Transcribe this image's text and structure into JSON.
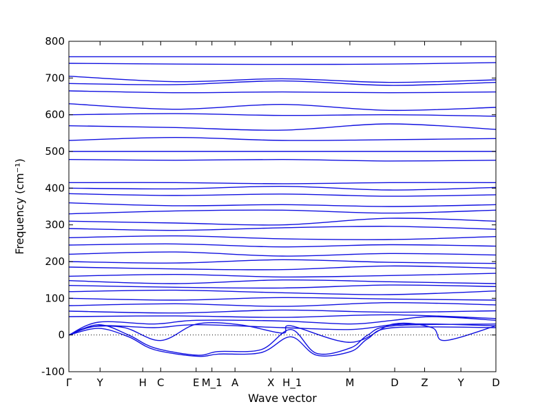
{
  "chart_data": {
    "type": "line",
    "xlabel": "Wave vector",
    "ylabel": "Frequency (cm⁻¹)",
    "ylim": [
      -100,
      800
    ],
    "yticks": [
      -100,
      0,
      100,
      200,
      300,
      400,
      500,
      600,
      700,
      800
    ],
    "xticks": [
      {
        "label": "Γ",
        "pos": 0.0
      },
      {
        "label": "Y",
        "pos": 0.073
      },
      {
        "label": "H",
        "pos": 0.173
      },
      {
        "label": "C",
        "pos": 0.215
      },
      {
        "label": "E",
        "pos": 0.298
      },
      {
        "label": "M_1",
        "pos": 0.335
      },
      {
        "label": "A",
        "pos": 0.389
      },
      {
        "label": "X",
        "pos": 0.473
      },
      {
        "label": "H_1",
        "pos": 0.523
      },
      {
        "label": "M",
        "pos": 0.658
      },
      {
        "label": "D",
        "pos": 0.763
      },
      {
        "label": "Z",
        "pos": 0.833
      },
      {
        "label": "Y",
        "pos": 0.918
      },
      {
        "label": "D",
        "pos": 1.0
      }
    ],
    "zero_line": 0,
    "series": [
      {
        "x": [
          0,
          0.25,
          0.5,
          0.75,
          1.0
        ],
        "values": [
          758,
          758,
          758,
          758,
          758
        ]
      },
      {
        "x": [
          0,
          0.25,
          0.5,
          0.75,
          1.0
        ],
        "values": [
          740,
          738,
          737,
          738,
          742
        ]
      },
      {
        "x": [
          0,
          0.25,
          0.5,
          0.75,
          1.0
        ],
        "values": [
          705,
          690,
          698,
          688,
          695
        ]
      },
      {
        "x": [
          0,
          0.25,
          0.5,
          0.75,
          1.0
        ],
        "values": [
          685,
          682,
          692,
          680,
          688
        ]
      },
      {
        "x": [
          0,
          0.25,
          0.5,
          0.75,
          1.0
        ],
        "values": [
          665,
          660,
          662,
          660,
          662
        ]
      },
      {
        "x": [
          0,
          0.25,
          0.5,
          0.75,
          1.0
        ],
        "values": [
          630,
          615,
          628,
          612,
          620
        ]
      },
      {
        "x": [
          0,
          0.25,
          0.5,
          0.75,
          1.0
        ],
        "values": [
          600,
          603,
          598,
          600,
          596
        ]
      },
      {
        "x": [
          0,
          0.25,
          0.5,
          0.75,
          1.0
        ],
        "values": [
          570,
          565,
          558,
          575,
          560
        ]
      },
      {
        "x": [
          0,
          0.25,
          0.5,
          0.75,
          1.0
        ],
        "values": [
          530,
          538,
          530,
          532,
          535
        ]
      },
      {
        "x": [
          0,
          0.25,
          0.5,
          0.75,
          1.0
        ],
        "values": [
          500,
          500,
          500,
          500,
          500
        ]
      },
      {
        "x": [
          0,
          0.25,
          0.5,
          0.75,
          1.0
        ],
        "values": [
          478,
          476,
          478,
          474,
          476
        ]
      },
      {
        "x": [
          0,
          0.25,
          0.5,
          0.75,
          1.0
        ],
        "values": [
          415,
          415,
          412,
          415,
          415
        ]
      },
      {
        "x": [
          0,
          0.25,
          0.5,
          0.75,
          1.0
        ],
        "values": [
          400,
          398,
          405,
          395,
          402
        ]
      },
      {
        "x": [
          0,
          0.25,
          0.5,
          0.75,
          1.0
        ],
        "values": [
          385,
          380,
          384,
          378,
          382
        ]
      },
      {
        "x": [
          0,
          0.25,
          0.5,
          0.75,
          1.0
        ],
        "values": [
          360,
          352,
          355,
          350,
          355
        ]
      },
      {
        "x": [
          0,
          0.25,
          0.5,
          0.75,
          1.0
        ],
        "values": [
          330,
          338,
          340,
          332,
          340
        ]
      },
      {
        "x": [
          0,
          0.25,
          0.5,
          0.75,
          1.0
        ],
        "values": [
          310,
          305,
          300,
          318,
          310
        ]
      },
      {
        "x": [
          0,
          0.25,
          0.5,
          0.75,
          1.0
        ],
        "values": [
          290,
          285,
          292,
          296,
          288
        ]
      },
      {
        "x": [
          0,
          0.25,
          0.5,
          0.75,
          1.0
        ],
        "values": [
          265,
          270,
          262,
          260,
          268
        ]
      },
      {
        "x": [
          0,
          0.25,
          0.5,
          0.75,
          1.0
        ],
        "values": [
          245,
          248,
          240,
          246,
          242
        ]
      },
      {
        "x": [
          0,
          0.25,
          0.5,
          0.75,
          1.0
        ],
        "values": [
          220,
          226,
          215,
          222,
          218
        ]
      },
      {
        "x": [
          0,
          0.25,
          0.5,
          0.75,
          1.0
        ],
        "values": [
          200,
          196,
          205,
          198,
          195
        ]
      },
      {
        "x": [
          0,
          0.25,
          0.5,
          0.75,
          1.0
        ],
        "values": [
          185,
          180,
          178,
          188,
          182
        ]
      },
      {
        "x": [
          0,
          0.25,
          0.5,
          0.75,
          1.0
        ],
        "values": [
          160,
          165,
          158,
          162,
          168
        ]
      },
      {
        "x": [
          0,
          0.25,
          0.5,
          0.75,
          1.0
        ],
        "values": [
          148,
          140,
          150,
          145,
          140
        ]
      },
      {
        "x": [
          0,
          0.25,
          0.5,
          0.75,
          1.0
        ],
        "values": [
          135,
          130,
          128,
          136,
          132
        ]
      },
      {
        "x": [
          0,
          0.25,
          0.5,
          0.75,
          1.0
        ],
        "values": [
          118,
          122,
          115,
          110,
          120
        ]
      },
      {
        "x": [
          0,
          0.25,
          0.5,
          0.75,
          1.0
        ],
        "values": [
          100,
          95,
          102,
          98,
          95
        ]
      },
      {
        "x": [
          0,
          0.25,
          0.5,
          0.75,
          1.0
        ],
        "values": [
          80,
          85,
          78,
          88,
          82
        ]
      },
      {
        "x": [
          0,
          0.25,
          0.5,
          0.75,
          1.0
        ],
        "values": [
          65,
          60,
          68,
          62,
          66
        ]
      },
      {
        "x": [
          0,
          0.25,
          0.5,
          0.75,
          1.0
        ],
        "values": [
          50,
          52,
          48,
          55,
          45
        ]
      },
      {
        "x": [
          0,
          0.07,
          0.2,
          0.3,
          0.5,
          0.66,
          0.76,
          0.85,
          1.0
        ],
        "values": [
          0,
          35,
          30,
          40,
          38,
          30,
          40,
          50,
          40
        ]
      },
      {
        "x": [
          0,
          0.07,
          0.2,
          0.3,
          0.5,
          0.66,
          0.76,
          0.85,
          1.0
        ],
        "values": [
          0,
          25,
          20,
          28,
          20,
          15,
          28,
          30,
          25
        ]
      },
      {
        "x": [
          0,
          0.05,
          0.13,
          0.215,
          0.3,
          0.4,
          0.5,
          0.52,
          0.66,
          0.76,
          0.85,
          0.88,
          1.0
        ],
        "values": [
          0,
          22,
          20,
          -15,
          30,
          28,
          5,
          25,
          -20,
          30,
          20,
          -15,
          25
        ]
      },
      {
        "x": [
          0,
          0.07,
          0.14,
          0.2,
          0.3,
          0.35,
          0.45,
          0.52,
          0.58,
          0.66,
          0.7,
          0.76,
          1.0
        ],
        "values": [
          0,
          28,
          0,
          -35,
          -55,
          -45,
          -40,
          15,
          -50,
          -35,
          0,
          25,
          30
        ]
      },
      {
        "x": [
          0,
          0.07,
          0.14,
          0.2,
          0.3,
          0.35,
          0.45,
          0.52,
          0.58,
          0.66,
          0.7,
          0.76,
          1.0
        ],
        "values": [
          0,
          18,
          -5,
          -40,
          -58,
          -52,
          -48,
          -5,
          -55,
          -45,
          -10,
          20,
          20
        ]
      }
    ]
  }
}
